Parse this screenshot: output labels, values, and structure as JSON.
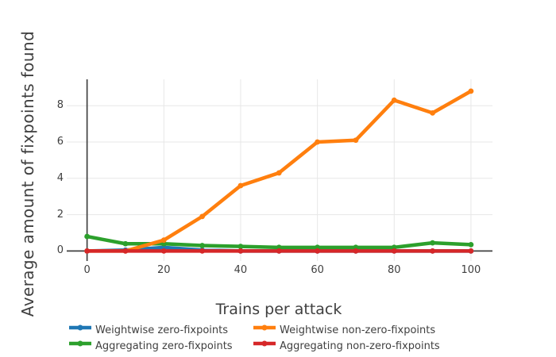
{
  "figure": {
    "background": "#ffffff",
    "text_color": "#3f3f3f",
    "grid_color": "#e7e7e7",
    "zeroline_color": "#414141"
  },
  "chart_data": {
    "type": "line",
    "title": "",
    "xlabel": "Trains per attack",
    "ylabel": "Average amount of fixpoints found",
    "x": [
      0,
      10,
      20,
      30,
      40,
      50,
      60,
      70,
      80,
      90,
      100
    ],
    "x_tick_values": [
      0,
      20,
      40,
      60,
      80,
      100
    ],
    "x_tick_labels": [
      "0",
      "20",
      "40",
      "60",
      "80",
      "100"
    ],
    "y_tick_values": [
      0,
      2,
      4,
      6,
      8
    ],
    "y_tick_labels": [
      "0",
      "2",
      "4",
      "6",
      "8"
    ],
    "xlim": [
      -5.3,
      105.6
    ],
    "ylim": [
      -0.55,
      9.45
    ],
    "grid": true,
    "zerolines": true,
    "marker": "circle",
    "legend_position": "bottom",
    "legend_columns": 2,
    "series": [
      {
        "name": "Weightwise zero-fixpoints",
        "color": "#1f77b4",
        "values": [
          0,
          0.05,
          0.2,
          0.05,
          0,
          0,
          0,
          0,
          0,
          0,
          0
        ]
      },
      {
        "name": "Weightwise non-zero-fixpoints",
        "color": "#ff7f0e",
        "values": [
          0,
          0,
          0.6,
          1.9,
          3.6,
          4.3,
          6.0,
          6.1,
          8.3,
          7.6,
          8.8
        ]
      },
      {
        "name": "Aggregating zero-fixpoints",
        "color": "#2ca02c",
        "values": [
          0.8,
          0.4,
          0.4,
          0.3,
          0.25,
          0.2,
          0.2,
          0.2,
          0.2,
          0.45,
          0.35
        ]
      },
      {
        "name": "Aggregating non-zero-fixpoints",
        "color": "#d62728",
        "values": [
          0,
          0,
          0,
          0,
          0,
          0,
          0,
          0,
          0,
          0,
          0
        ]
      }
    ],
    "draw_order": [
      0,
      2,
      1,
      3
    ]
  }
}
